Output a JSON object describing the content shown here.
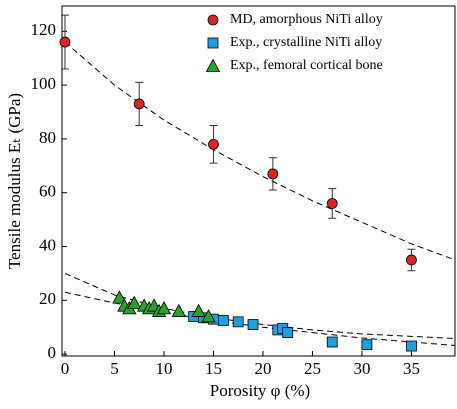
{
  "chart_data": {
    "type": "scatter",
    "xlabel": "Porosity φ (%)",
    "ylabel": "Tensile modulus Eₜ (GPa)",
    "xlim": [
      -0.3,
      39.4
    ],
    "ylim": [
      -0.7,
      129.4
    ],
    "xticks": [
      0,
      5,
      10,
      15,
      20,
      25,
      30,
      35
    ],
    "yticks": [
      0,
      20,
      40,
      60,
      80,
      100,
      120
    ],
    "legend": "upper-right",
    "series": [
      {
        "name": "MD, amorphous NiTi alloy",
        "color": "#d62728",
        "marker": "circle",
        "x": [
          0,
          7.5,
          15,
          21,
          27,
          35
        ],
        "values": [
          116,
          93,
          78,
          67,
          56,
          35
        ],
        "errors": [
          10,
          8,
          7,
          6,
          5.5,
          4
        ]
      },
      {
        "name": "Exp., crystalline NiTi alloy",
        "color": "#1f9fdf",
        "marker": "square",
        "x": [
          13,
          14,
          15,
          16,
          17.5,
          19,
          21.5,
          22,
          22.5,
          27,
          30.5,
          35
        ],
        "values": [
          14,
          13.5,
          13,
          12.5,
          12,
          11,
          9,
          9.5,
          8,
          4.5,
          3.5,
          3
        ]
      },
      {
        "name": "Exp., femoral cortical bone",
        "color": "#2ca02c",
        "marker": "triangle",
        "x": [
          5.5,
          6,
          6.5,
          7,
          8,
          8.5,
          9,
          9.5,
          10,
          11.5,
          13.5,
          14.5
        ],
        "values": [
          21,
          18,
          17,
          19,
          18,
          17,
          18,
          16,
          17,
          16,
          16,
          14
        ]
      }
    ],
    "fit_lines": [
      {
        "x": [
          0,
          5,
          10,
          15,
          20,
          25,
          30,
          35,
          39.4
        ],
        "values": [
          116,
          100,
          87,
          76,
          66,
          57,
          49,
          41,
          35
        ]
      },
      {
        "x": [
          0,
          5,
          10,
          15,
          20,
          25,
          30,
          39.4
        ],
        "values": [
          30,
          22,
          17,
          13.5,
          11,
          9,
          7.5,
          5.8
        ]
      },
      {
        "x": [
          0,
          5,
          10,
          15,
          20,
          25,
          30,
          39.4
        ],
        "values": [
          23,
          19,
          15.5,
          12.5,
          10,
          8,
          6,
          3.2
        ]
      }
    ],
    "line_style": "dashed"
  }
}
